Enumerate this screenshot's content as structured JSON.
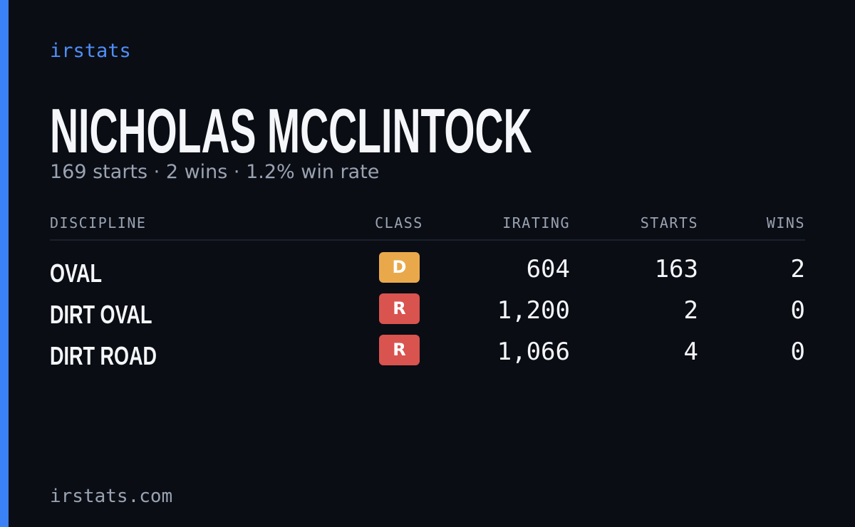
{
  "brand": "irstats",
  "driver": {
    "name": "NICHOLAS MCCLINTOCK",
    "summary": "169 starts · 2 wins · 1.2% win rate"
  },
  "table": {
    "headers": [
      "DISCIPLINE",
      "CLASS",
      "IRATING",
      "STARTS",
      "WINS"
    ],
    "rows": [
      {
        "discipline": "OVAL",
        "class": "D",
        "badge_color": "#e9a94b",
        "irating": "604",
        "starts": "163",
        "wins": "2"
      },
      {
        "discipline": "DIRT OVAL",
        "class": "R",
        "badge_color": "#d9534f",
        "irating": "1,200",
        "starts": "2",
        "wins": "0"
      },
      {
        "discipline": "DIRT ROAD",
        "class": "R",
        "badge_color": "#d9534f",
        "irating": "1,066",
        "starts": "4",
        "wins": "0"
      }
    ]
  },
  "footer": "irstats.com"
}
